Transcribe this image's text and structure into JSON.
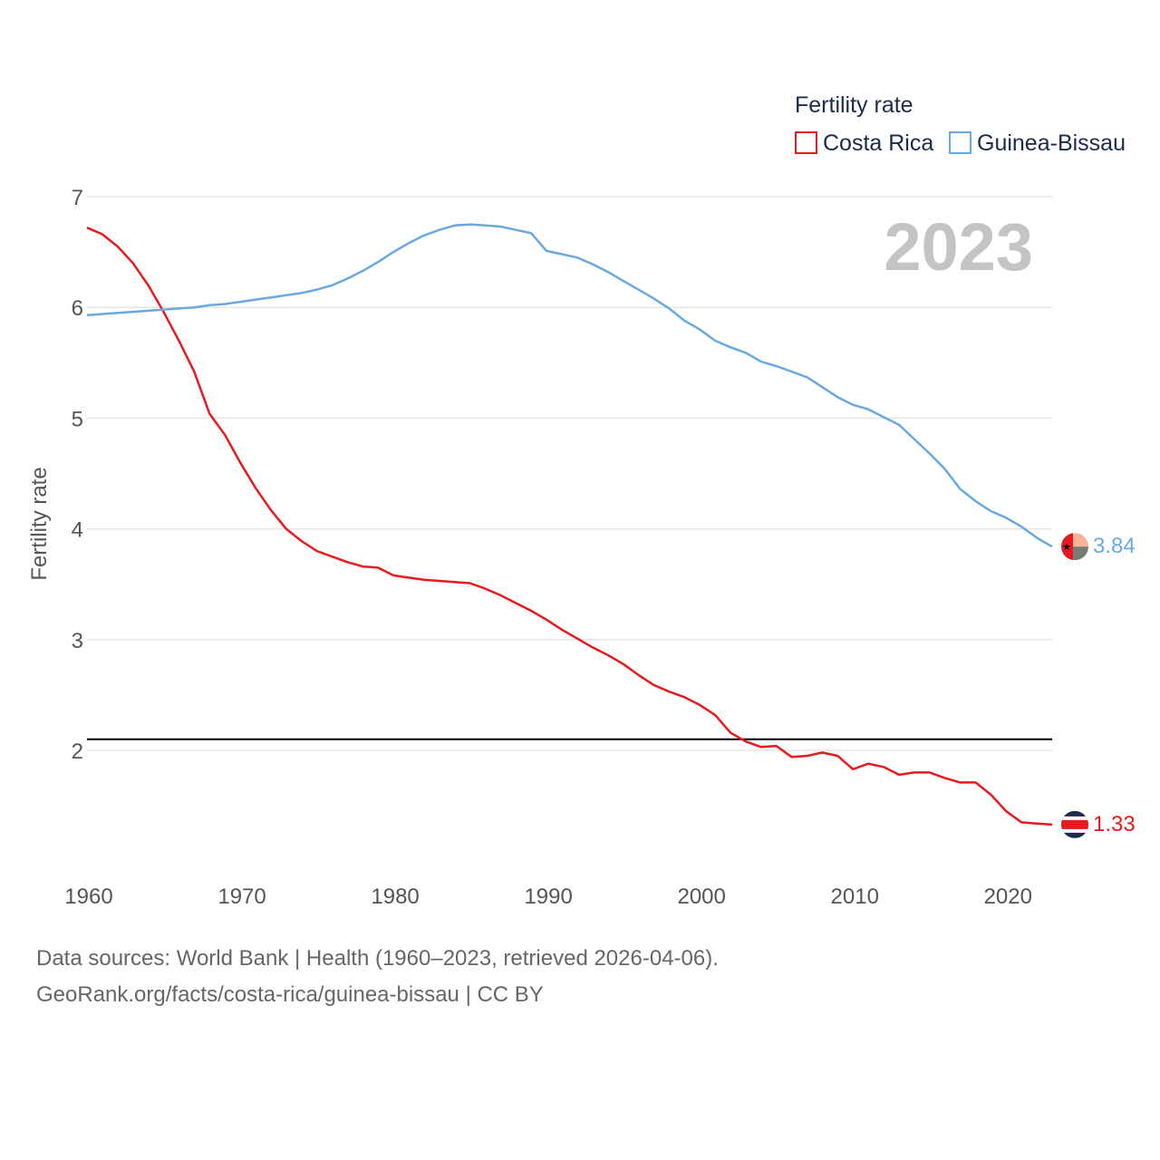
{
  "chart_data": {
    "type": "line",
    "title": "Fertility rate",
    "ylabel": "Fertility rate",
    "xlabel": "",
    "year_label": "2023",
    "xlim": [
      1960,
      2023
    ],
    "ylim": [
      1,
      7
    ],
    "x_ticks": [
      "1960",
      "1970",
      "1980",
      "1990",
      "2000",
      "2010",
      "2020"
    ],
    "y_ticks": [
      "2",
      "3",
      "4",
      "5",
      "6",
      "7"
    ],
    "reference_line": 2.1,
    "grid": true,
    "legend_position": "top-right",
    "series": [
      {
        "name": "Costa Rica",
        "color": "#e8191f",
        "end_label": "1.33",
        "x": [
          1960,
          1961,
          1962,
          1963,
          1964,
          1965,
          1966,
          1967,
          1968,
          1969,
          1970,
          1971,
          1972,
          1973,
          1974,
          1975,
          1976,
          1977,
          1978,
          1979,
          1980,
          1981,
          1982,
          1983,
          1984,
          1985,
          1986,
          1987,
          1988,
          1989,
          1990,
          1991,
          1992,
          1993,
          1994,
          1995,
          1996,
          1997,
          1998,
          1999,
          2000,
          2001,
          2002,
          2003,
          2004,
          2005,
          2006,
          2007,
          2008,
          2009,
          2010,
          2011,
          2012,
          2013,
          2014,
          2015,
          2016,
          2017,
          2018,
          2019,
          2020,
          2021,
          2022,
          2023
        ],
        "values": [
          6.72,
          6.66,
          6.55,
          6.4,
          6.2,
          5.96,
          5.7,
          5.42,
          5.04,
          4.85,
          4.6,
          4.37,
          4.17,
          4.0,
          3.89,
          3.8,
          3.75,
          3.7,
          3.66,
          3.65,
          3.58,
          3.56,
          3.54,
          3.53,
          3.52,
          3.51,
          3.46,
          3.4,
          3.33,
          3.26,
          3.18,
          3.09,
          3.01,
          2.93,
          2.86,
          2.78,
          2.68,
          2.59,
          2.53,
          2.48,
          2.41,
          2.32,
          2.16,
          2.08,
          2.03,
          2.04,
          1.94,
          1.95,
          1.98,
          1.95,
          1.83,
          1.88,
          1.85,
          1.78,
          1.8,
          1.8,
          1.75,
          1.71,
          1.71,
          1.6,
          1.45,
          1.35,
          1.34,
          1.33
        ]
      },
      {
        "name": "Guinea-Bissau",
        "color": "#6aa8e2",
        "end_label": "3.84",
        "x": [
          1960,
          1961,
          1962,
          1963,
          1964,
          1965,
          1966,
          1967,
          1968,
          1969,
          1970,
          1971,
          1972,
          1973,
          1974,
          1975,
          1976,
          1977,
          1978,
          1979,
          1980,
          1981,
          1982,
          1983,
          1984,
          1985,
          1986,
          1987,
          1988,
          1989,
          1990,
          1991,
          1992,
          1993,
          1994,
          1995,
          1996,
          1997,
          1998,
          1999,
          2000,
          2001,
          2002,
          2003,
          2004,
          2005,
          2006,
          2007,
          2008,
          2009,
          2010,
          2011,
          2012,
          2013,
          2014,
          2015,
          2016,
          2017,
          2018,
          2019,
          2020,
          2021,
          2022,
          2023
        ],
        "values": [
          5.93,
          5.94,
          5.95,
          5.96,
          5.97,
          5.98,
          5.99,
          6.0,
          6.02,
          6.03,
          6.05,
          6.07,
          6.09,
          6.11,
          6.13,
          6.16,
          6.2,
          6.26,
          6.33,
          6.41,
          6.5,
          6.58,
          6.65,
          6.7,
          6.74,
          6.75,
          6.74,
          6.73,
          6.7,
          6.67,
          6.51,
          6.48,
          6.45,
          6.39,
          6.32,
          6.24,
          6.16,
          6.08,
          5.99,
          5.88,
          5.8,
          5.7,
          5.64,
          5.59,
          5.51,
          5.47,
          5.42,
          5.37,
          5.28,
          5.19,
          5.12,
          5.08,
          5.01,
          4.94,
          4.81,
          4.68,
          4.54,
          4.36,
          4.25,
          4.16,
          4.1,
          4.02,
          3.92,
          3.84
        ]
      }
    ]
  },
  "footer": {
    "line1": "Data sources: World Bank | Health (1960–2023, retrieved 2026-04-06).",
    "line2": "GeoRank.org/facts/costa-rica/guinea-bissau | CC BY"
  }
}
